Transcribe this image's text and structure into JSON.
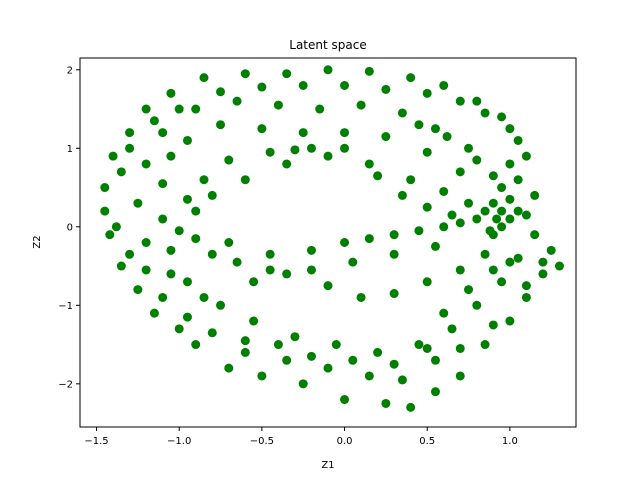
{
  "chart_data": {
    "type": "scatter",
    "title": "Latent space",
    "xlabel": "Z1",
    "ylabel": "Z2",
    "xlim": [
      -1.6,
      1.4
    ],
    "ylim": [
      -2.55,
      2.15
    ],
    "xticks": [
      -1.5,
      -1.0,
      -0.5,
      0.0,
      0.5,
      1.0
    ],
    "xtick_labels": [
      "−1.5",
      "−1.0",
      "−0.5",
      "0.0",
      "0.5",
      "1.0"
    ],
    "yticks": [
      -2,
      -1,
      0,
      1,
      2
    ],
    "ytick_labels": [
      "−2",
      "−1",
      "0",
      "1",
      "2"
    ],
    "grid": false,
    "legend": "none",
    "marker_color": "#008000",
    "series": [
      {
        "points": [
          [
            -0.85,
            1.9
          ],
          [
            -0.6,
            1.95
          ],
          [
            -0.35,
            1.95
          ],
          [
            -0.1,
            2.0
          ],
          [
            0.15,
            1.98
          ],
          [
            0.4,
            1.9
          ],
          [
            0.6,
            1.8
          ],
          [
            0.8,
            1.6
          ],
          [
            0.95,
            1.4
          ],
          [
            1.05,
            1.1
          ],
          [
            -1.05,
            1.7
          ],
          [
            -1.2,
            1.5
          ],
          [
            -1.3,
            1.2
          ],
          [
            -1.4,
            0.9
          ],
          [
            -1.45,
            0.5
          ],
          [
            -1.45,
            0.2
          ],
          [
            -1.42,
            -0.1
          ],
          [
            -1.35,
            -0.5
          ],
          [
            -1.25,
            -0.8
          ],
          [
            -1.15,
            -1.1
          ],
          [
            -1.0,
            -1.3
          ],
          [
            -0.9,
            -1.5
          ],
          [
            -0.7,
            -1.8
          ],
          [
            -0.5,
            -1.9
          ],
          [
            -0.25,
            -2.0
          ],
          [
            0.0,
            -2.2
          ],
          [
            0.25,
            -2.25
          ],
          [
            0.4,
            -2.3
          ],
          [
            0.55,
            -2.1
          ],
          [
            0.7,
            -1.9
          ],
          [
            0.85,
            -1.5
          ],
          [
            1.0,
            -1.2
          ],
          [
            1.1,
            -0.9
          ],
          [
            1.2,
            -0.6
          ],
          [
            1.3,
            -0.5
          ],
          [
            1.25,
            -0.3
          ],
          [
            1.15,
            -0.1
          ],
          [
            1.0,
            0.1
          ],
          [
            0.9,
            0.3
          ],
          [
            0.95,
            0.5
          ],
          [
            1.0,
            0.8
          ],
          [
            1.05,
            0.6
          ],
          [
            0.85,
            0.2
          ],
          [
            0.8,
            0.1
          ],
          [
            0.7,
            0.05
          ],
          [
            0.6,
            0.0
          ],
          [
            0.45,
            -0.05
          ],
          [
            0.3,
            -0.1
          ],
          [
            0.15,
            -0.15
          ],
          [
            0.0,
            -0.2
          ],
          [
            -0.2,
            -0.3
          ],
          [
            -0.45,
            -0.35
          ],
          [
            -0.7,
            -0.2
          ],
          [
            -0.9,
            -0.15
          ],
          [
            -1.0,
            -0.05
          ],
          [
            -0.9,
            0.2
          ],
          [
            -0.8,
            0.4
          ],
          [
            -0.6,
            0.6
          ],
          [
            -0.35,
            0.8
          ],
          [
            -0.1,
            0.9
          ],
          [
            0.15,
            0.8
          ],
          [
            0.4,
            0.6
          ],
          [
            0.6,
            0.45
          ],
          [
            0.75,
            0.3
          ],
          [
            -1.1,
            1.2
          ],
          [
            -0.9,
            1.5
          ],
          [
            -0.65,
            1.6
          ],
          [
            -0.4,
            1.55
          ],
          [
            -0.15,
            1.5
          ],
          [
            0.1,
            1.55
          ],
          [
            0.35,
            1.45
          ],
          [
            0.55,
            1.25
          ],
          [
            0.75,
            1.0
          ],
          [
            -1.2,
            0.8
          ],
          [
            -1.25,
            0.3
          ],
          [
            -1.2,
            -0.2
          ],
          [
            -1.05,
            -0.6
          ],
          [
            -0.85,
            -0.9
          ],
          [
            -0.55,
            -1.2
          ],
          [
            -0.3,
            -1.4
          ],
          [
            -0.05,
            -1.5
          ],
          [
            0.2,
            -1.6
          ],
          [
            0.45,
            -1.5
          ],
          [
            0.65,
            -1.3
          ],
          [
            0.8,
            -1.0
          ],
          [
            0.95,
            -0.7
          ],
          [
            1.05,
            -0.4
          ],
          [
            -0.5,
            1.25
          ],
          [
            -0.25,
            1.2
          ],
          [
            0.0,
            1.2
          ],
          [
            0.25,
            1.15
          ],
          [
            0.5,
            0.95
          ],
          [
            0.7,
            0.7
          ],
          [
            -0.75,
            1.3
          ],
          [
            -0.95,
            1.1
          ],
          [
            -1.05,
            0.9
          ],
          [
            -1.1,
            0.55
          ],
          [
            -1.1,
            0.1
          ],
          [
            -1.05,
            -0.3
          ],
          [
            -0.95,
            -0.7
          ],
          [
            -0.75,
            -1.0
          ],
          [
            -0.55,
            -0.7
          ],
          [
            -0.35,
            -0.6
          ],
          [
            -0.1,
            -0.75
          ],
          [
            0.1,
            -0.9
          ],
          [
            0.3,
            -0.85
          ],
          [
            0.5,
            -0.7
          ],
          [
            0.7,
            -0.55
          ],
          [
            0.85,
            -0.35
          ],
          [
            0.55,
            -0.25
          ],
          [
            0.3,
            -0.35
          ],
          [
            0.05,
            -0.45
          ],
          [
            -0.2,
            -0.55
          ],
          [
            -0.45,
            -0.55
          ],
          [
            -0.65,
            -0.45
          ],
          [
            -0.8,
            -0.35
          ],
          [
            -0.6,
            -1.45
          ],
          [
            -0.35,
            -1.7
          ],
          [
            -0.1,
            -1.8
          ],
          [
            0.15,
            -1.9
          ],
          [
            0.35,
            -1.95
          ],
          [
            0.55,
            -1.7
          ],
          [
            0.7,
            -1.55
          ],
          [
            0.9,
            -1.25
          ],
          [
            1.1,
            -0.75
          ],
          [
            1.2,
            -0.45
          ],
          [
            1.05,
            0.2
          ],
          [
            1.0,
            0.35
          ],
          [
            0.95,
            0.0
          ],
          [
            0.9,
            -0.1
          ],
          [
            0.95,
            0.2
          ],
          [
            1.1,
            0.15
          ],
          [
            1.15,
            0.4
          ],
          [
            1.1,
            0.9
          ],
          [
            1.0,
            1.25
          ],
          [
            0.85,
            1.45
          ],
          [
            0.7,
            1.6
          ],
          [
            0.5,
            1.7
          ],
          [
            0.25,
            1.75
          ],
          [
            0.0,
            1.8
          ],
          [
            -0.25,
            1.8
          ],
          [
            -0.5,
            1.78
          ],
          [
            -0.75,
            1.72
          ],
          [
            -1.0,
            1.5
          ],
          [
            -1.15,
            1.35
          ],
          [
            -1.3,
            1.0
          ],
          [
            -1.35,
            0.7
          ],
          [
            -1.38,
            0.0
          ],
          [
            -1.3,
            -0.35
          ],
          [
            -1.2,
            -0.55
          ],
          [
            -1.1,
            -0.9
          ],
          [
            -0.95,
            -1.15
          ],
          [
            -0.8,
            -1.35
          ],
          [
            -0.6,
            -1.6
          ],
          [
            -0.4,
            -1.5
          ],
          [
            -0.2,
            -1.65
          ],
          [
            0.05,
            -1.7
          ],
          [
            0.3,
            -1.75
          ],
          [
            0.5,
            -1.55
          ],
          [
            0.6,
            -1.1
          ],
          [
            0.75,
            -0.8
          ],
          [
            0.9,
            -0.55
          ],
          [
            1.0,
            -0.45
          ],
          [
            0.65,
            0.15
          ],
          [
            0.5,
            0.25
          ],
          [
            0.35,
            0.4
          ],
          [
            0.2,
            0.65
          ],
          [
            0.0,
            1.0
          ],
          [
            -0.2,
            1.0
          ],
          [
            -0.45,
            0.95
          ],
          [
            -0.7,
            0.85
          ],
          [
            -0.85,
            0.6
          ],
          [
            -0.95,
            0.35
          ],
          [
            -0.3,
            0.98
          ],
          [
            0.45,
            1.3
          ],
          [
            0.62,
            1.15
          ],
          [
            0.8,
            0.85
          ],
          [
            0.9,
            0.65
          ],
          [
            0.92,
            0.1
          ],
          [
            0.88,
            -0.05
          ]
        ]
      }
    ]
  }
}
